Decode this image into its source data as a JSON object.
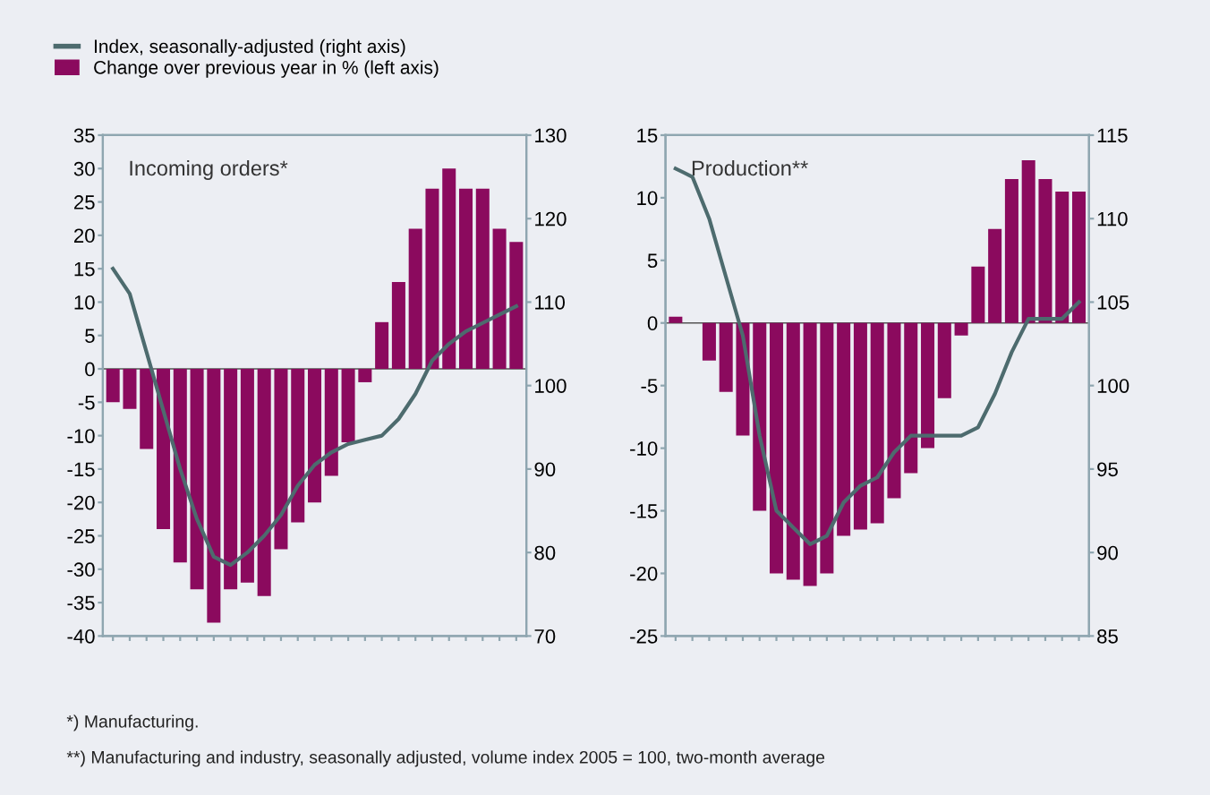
{
  "chart_data": [
    {
      "type": "bar",
      "title": "Incoming orders*",
      "categories": [
        null,
        null,
        null,
        null,
        null,
        null,
        null,
        null,
        null,
        null,
        null,
        null,
        null,
        null,
        null,
        null,
        null,
        null,
        null,
        null,
        null,
        null,
        null,
        null,
        null
      ],
      "legend": "top left",
      "series": [
        {
          "name": "Index, seasonally-adjusted (right axis)",
          "type": "line",
          "axis": "y2",
          "color": "#4d6b6e",
          "values": [
            114,
            111,
            104,
            97,
            90,
            84,
            79.5,
            78.5,
            80,
            82,
            84.5,
            88,
            90.5,
            92,
            93,
            93.5,
            94,
            96,
            99,
            103,
            105,
            106.5,
            107.5,
            108.5,
            109.5
          ]
        },
        {
          "name": "Change over previous year in % (left axis)",
          "axis": "y",
          "color": "#8b0a5e",
          "values": [
            -5,
            -6,
            -12,
            -24,
            -29,
            -33,
            -38,
            -33,
            -32,
            -34,
            -27,
            -23,
            -20,
            -16,
            -11,
            -2,
            7,
            13,
            21,
            27,
            30,
            27,
            27,
            21,
            19
          ]
        }
      ],
      "ylim": [
        -40,
        35
      ],
      "yticks": [
        -40,
        -35,
        -30,
        -25,
        -20,
        -15,
        -10,
        -5,
        0,
        5,
        10,
        15,
        20,
        25,
        30,
        35
      ],
      "y2lim": [
        70,
        130
      ],
      "y2ticks": [
        70,
        80,
        90,
        100,
        110,
        120,
        130
      ]
    },
    {
      "type": "bar",
      "title": "Production**",
      "categories": [
        null,
        null,
        null,
        null,
        null,
        null,
        null,
        null,
        null,
        null,
        null,
        null,
        null,
        null,
        null,
        null,
        null,
        null,
        null,
        null,
        null,
        null,
        null,
        null,
        null
      ],
      "series": [
        {
          "type": "line",
          "axis": "y2",
          "color": "#4d6b6e",
          "values": [
            113,
            112.5,
            110,
            106.5,
            103,
            97,
            92.5,
            91.5,
            90.5,
            91,
            93,
            94,
            94.5,
            96,
            97,
            97,
            97,
            97,
            97.5,
            99.5,
            102,
            104,
            104,
            104,
            105
          ]
        },
        {
          "axis": "y",
          "color": "#8b0a5e",
          "values": [
            0.5,
            0,
            -3,
            -5.5,
            -9,
            -15,
            -20,
            -20.5,
            -21,
            -20,
            -17,
            -16.5,
            -16,
            -14,
            -12,
            -10,
            -6,
            -1,
            4.5,
            7.5,
            11.5,
            13,
            11.5,
            10.5,
            10.5
          ]
        }
      ],
      "ylim": [
        -25,
        15
      ],
      "yticks": [
        -25,
        -20,
        -15,
        -10,
        -5,
        0,
        5,
        10,
        15
      ],
      "y2lim": [
        85,
        115
      ],
      "y2ticks": [
        85,
        90,
        95,
        100,
        105,
        110,
        115
      ],
      "annotations": [
        "*) Manufacturing.",
        "**) Manufacturing and industry, seasonally adjusted, volume index 2005 = 100, two-month average"
      ]
    }
  ]
}
